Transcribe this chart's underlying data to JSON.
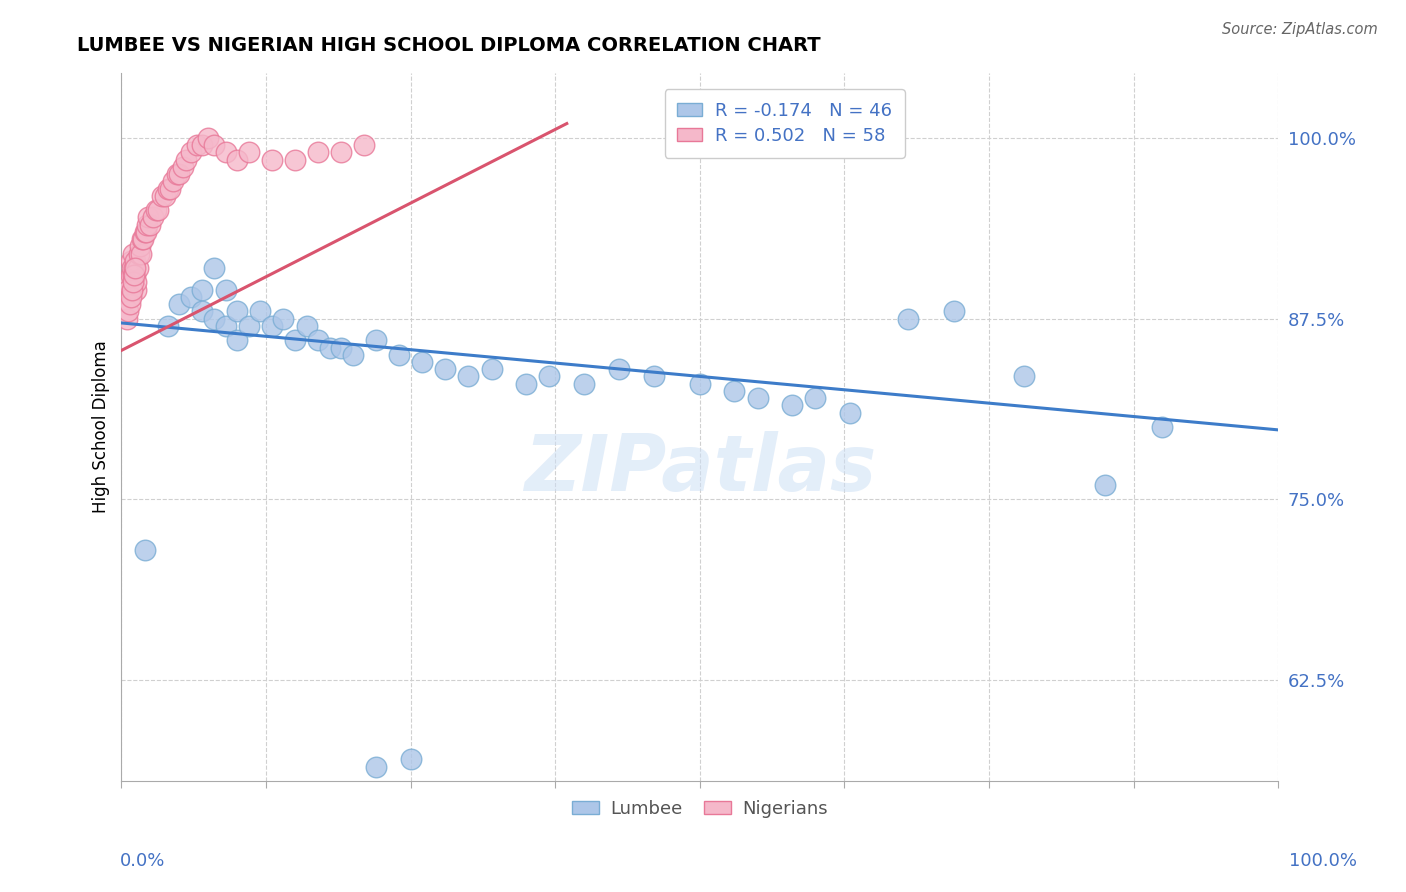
{
  "title": "LUMBEE VS NIGERIAN HIGH SCHOOL DIPLOMA CORRELATION CHART",
  "source": "Source: ZipAtlas.com",
  "ylabel": "High School Diploma",
  "xlim": [
    0.0,
    1.0
  ],
  "ylim": [
    0.555,
    1.045
  ],
  "yticks": [
    0.625,
    0.75,
    0.875,
    1.0
  ],
  "ytick_labels": [
    "62.5%",
    "75.0%",
    "87.5%",
    "100.0%"
  ],
  "legend_r_entries": [
    {
      "label": "R = -0.174   N = 46"
    },
    {
      "label": "R = 0.502   N = 58"
    }
  ],
  "legend_labels": [
    "Lumbee",
    "Nigerians"
  ],
  "blue_color": "#adc6e8",
  "pink_color": "#f5b8ca",
  "blue_edge": "#7aadd4",
  "pink_edge": "#e87898",
  "trend_blue": "#3d7cc9",
  "trend_pink": "#d9546e",
  "lumbee_x": [
    0.02,
    0.04,
    0.05,
    0.06,
    0.07,
    0.07,
    0.08,
    0.08,
    0.09,
    0.09,
    0.1,
    0.1,
    0.11,
    0.12,
    0.13,
    0.14,
    0.15,
    0.16,
    0.17,
    0.18,
    0.19,
    0.2,
    0.22,
    0.24,
    0.26,
    0.28,
    0.3,
    0.32,
    0.35,
    0.37,
    0.4,
    0.43,
    0.46,
    0.5,
    0.53,
    0.55,
    0.58,
    0.6,
    0.63,
    0.68,
    0.72,
    0.78,
    0.85,
    0.9,
    0.22,
    0.25
  ],
  "lumbee_y": [
    0.715,
    0.87,
    0.885,
    0.89,
    0.895,
    0.88,
    0.91,
    0.875,
    0.895,
    0.87,
    0.88,
    0.86,
    0.87,
    0.88,
    0.87,
    0.875,
    0.86,
    0.87,
    0.86,
    0.855,
    0.855,
    0.85,
    0.86,
    0.85,
    0.845,
    0.84,
    0.835,
    0.84,
    0.83,
    0.835,
    0.83,
    0.84,
    0.835,
    0.83,
    0.825,
    0.82,
    0.815,
    0.82,
    0.81,
    0.875,
    0.88,
    0.835,
    0.76,
    0.8,
    0.565,
    0.57
  ],
  "nigerian_x": [
    0.005,
    0.006,
    0.007,
    0.008,
    0.008,
    0.009,
    0.009,
    0.01,
    0.01,
    0.011,
    0.012,
    0.012,
    0.013,
    0.013,
    0.014,
    0.015,
    0.016,
    0.017,
    0.018,
    0.019,
    0.02,
    0.021,
    0.022,
    0.023,
    0.025,
    0.027,
    0.03,
    0.032,
    0.035,
    0.038,
    0.04,
    0.042,
    0.045,
    0.048,
    0.05,
    0.053,
    0.056,
    0.06,
    0.065,
    0.07,
    0.075,
    0.08,
    0.09,
    0.1,
    0.11,
    0.13,
    0.15,
    0.17,
    0.19,
    0.21,
    0.005,
    0.006,
    0.007,
    0.008,
    0.009,
    0.01,
    0.011,
    0.012
  ],
  "nigerian_y": [
    0.9,
    0.895,
    0.89,
    0.905,
    0.915,
    0.895,
    0.91,
    0.905,
    0.92,
    0.91,
    0.915,
    0.905,
    0.895,
    0.9,
    0.91,
    0.92,
    0.925,
    0.92,
    0.93,
    0.93,
    0.935,
    0.935,
    0.94,
    0.945,
    0.94,
    0.945,
    0.95,
    0.95,
    0.96,
    0.96,
    0.965,
    0.965,
    0.97,
    0.975,
    0.975,
    0.98,
    0.985,
    0.99,
    0.995,
    0.995,
    1.0,
    0.995,
    0.99,
    0.985,
    0.99,
    0.985,
    0.985,
    0.99,
    0.99,
    0.995,
    0.875,
    0.88,
    0.885,
    0.89,
    0.895,
    0.9,
    0.905,
    0.91
  ],
  "blue_trendline": {
    "x_start": 0.0,
    "x_end": 1.0,
    "y_start": 0.872,
    "y_end": 0.798
  },
  "pink_trendline": {
    "x_start": 0.0,
    "x_end": 0.385,
    "y_start": 0.853,
    "y_end": 1.01
  },
  "watermark": "ZIPatlas",
  "background_color": "#ffffff",
  "grid_color": "#d0d0d0",
  "text_color_blue": "#4472c4",
  "source_color": "#666666"
}
